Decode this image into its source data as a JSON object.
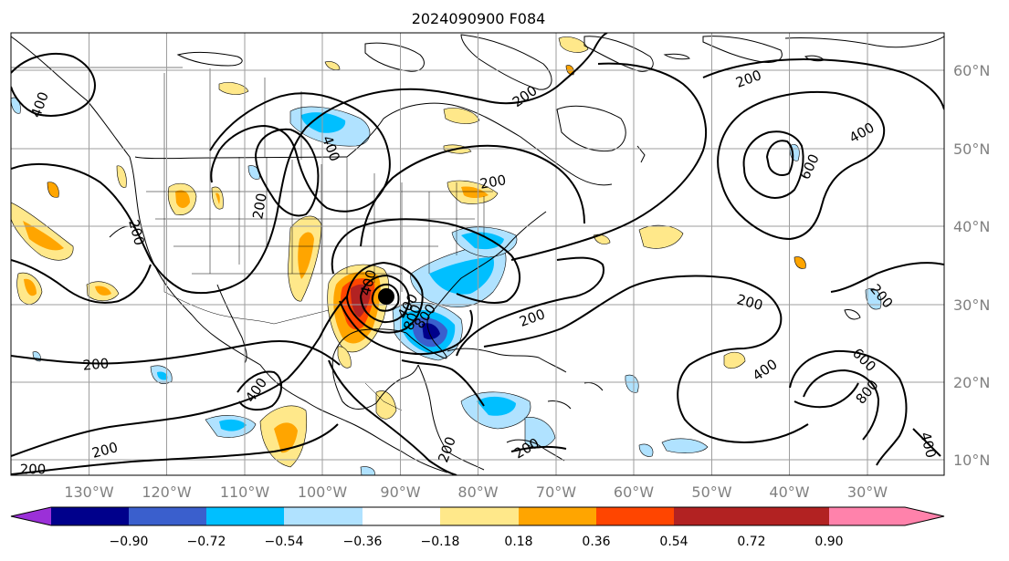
{
  "title": "2024090900 F084",
  "lon_labels": [
    "130°W",
    "120°W",
    "110°W",
    "100°W",
    "90°W",
    "80°W",
    "70°W",
    "60°W",
    "50°W",
    "40°W",
    "30°W"
  ],
  "lat_labels": [
    "60°N",
    "50°N",
    "40°N",
    "30°N",
    "20°N",
    "10°N"
  ],
  "colorbar": {
    "ticks": [
      "−0.90",
      "−0.72",
      "−0.54",
      "−0.36",
      "−0.18",
      "0.18",
      "0.36",
      "0.54",
      "0.72",
      "0.90"
    ],
    "colors": [
      "#9b30d8",
      "#00008b",
      "#3a5fcd",
      "#00bfff",
      "#b0e2ff",
      "#ffffff",
      "#ffe88a",
      "#ffa500",
      "#ff4500",
      "#b22222",
      "#ff82ab"
    ]
  },
  "contour_labels": [
    {
      "text": "200"
    },
    {
      "text": "200"
    },
    {
      "text": "200"
    },
    {
      "text": "200"
    },
    {
      "text": "200"
    },
    {
      "text": "200"
    },
    {
      "text": "200"
    },
    {
      "text": "200"
    },
    {
      "text": "200"
    },
    {
      "text": "200"
    },
    {
      "text": "200"
    },
    {
      "text": "200"
    },
    {
      "text": "200"
    },
    {
      "text": "400"
    },
    {
      "text": "400"
    },
    {
      "text": "400"
    },
    {
      "text": "400"
    },
    {
      "text": "400"
    },
    {
      "text": "400"
    },
    {
      "text": "400"
    },
    {
      "text": "400"
    },
    {
      "text": "600"
    },
    {
      "text": "600"
    },
    {
      "text": "800"
    },
    {
      "text": "800"
    },
    {
      "text": "800"
    }
  ]
}
